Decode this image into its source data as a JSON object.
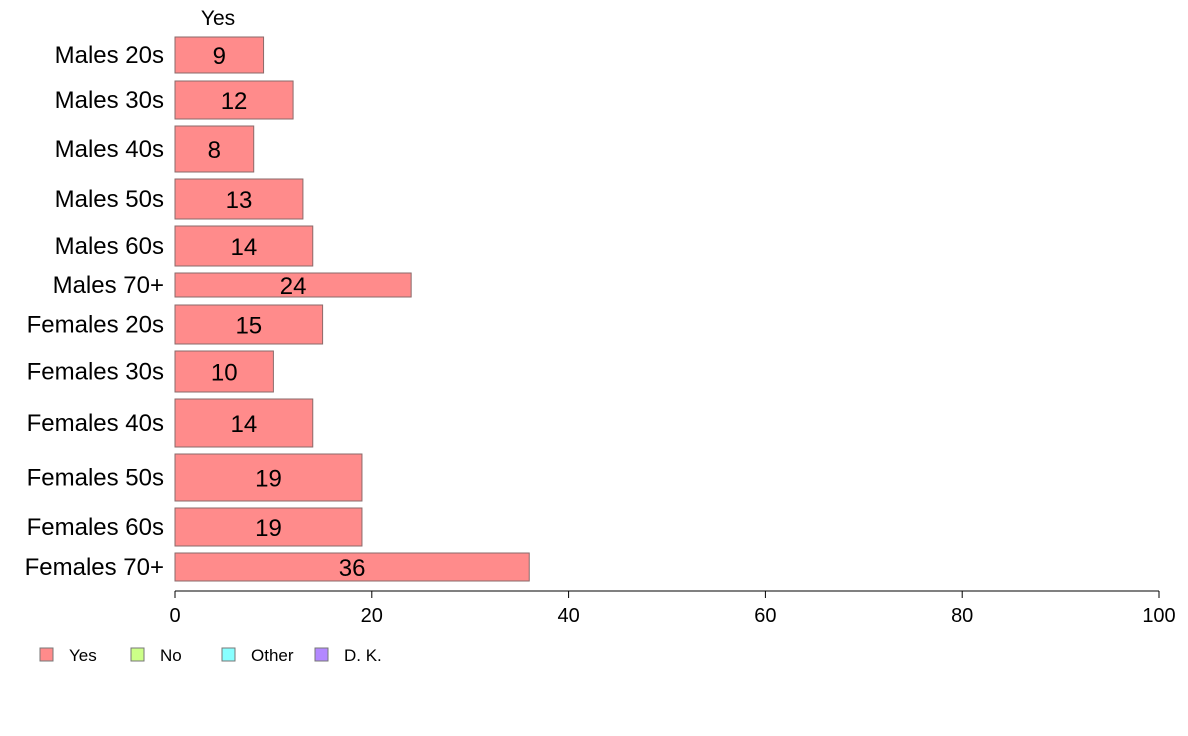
{
  "chart_data": {
    "type": "bar",
    "orientation": "horizontal",
    "categories": [
      "Males 20s",
      "Males 30s",
      "Males 40s",
      "Males 50s",
      "Males 60s",
      "Males 70+",
      "Females 20s",
      "Females 30s",
      "Females 40s",
      "Females 50s",
      "Females 60s",
      "Females 70+"
    ],
    "series": [
      {
        "name": "Yes",
        "color": "#FF8B8B",
        "values": [
          9,
          12,
          8,
          13,
          14,
          24,
          15,
          10,
          14,
          19,
          19,
          36
        ]
      }
    ],
    "bar_labels": [
      "9",
      "12",
      "8",
      "13",
      "14",
      "24",
      "15",
      "10",
      "14",
      "19",
      "19",
      "36"
    ],
    "xlim": [
      0,
      100
    ],
    "xticks": [
      0,
      20,
      40,
      60,
      80,
      100
    ],
    "xtick_labels": [
      "0",
      "20",
      "40",
      "60",
      "80",
      "100"
    ],
    "series_header": "Yes",
    "legend": {
      "position": "bottom-left",
      "entries": [
        {
          "label": "Yes",
          "color": "#FF8B8B"
        },
        {
          "label": "No",
          "color": "#CCFF88"
        },
        {
          "label": "Other",
          "color": "#88FFFF"
        },
        {
          "label": "D. K.",
          "color": "#B388FF"
        }
      ]
    },
    "grid": false
  }
}
